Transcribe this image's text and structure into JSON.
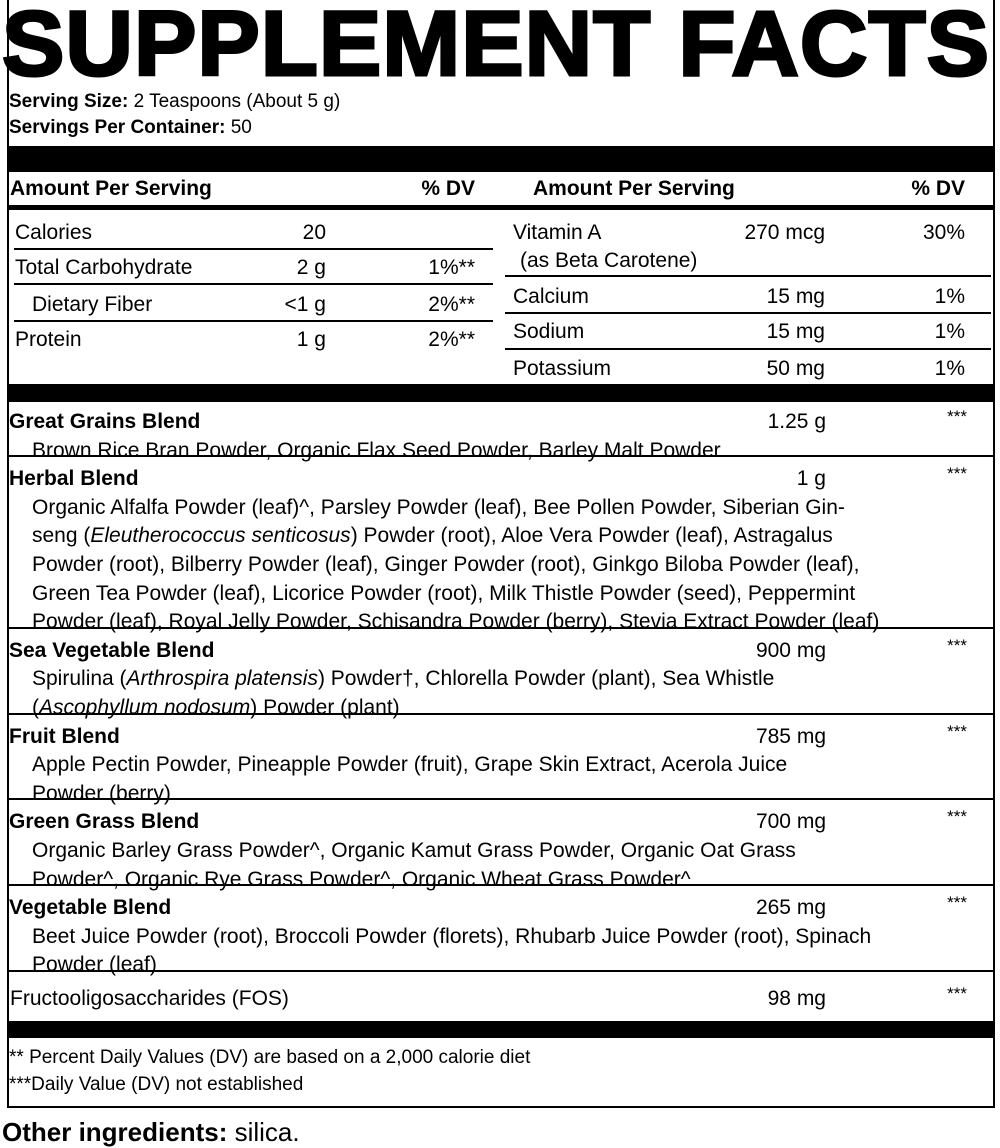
{
  "title": "SUPPLEMENT FACTS",
  "serving": {
    "size_label": "Serving Size:",
    "size_value": "2 Teaspoons (About 5 g)",
    "per_container_label": "Servings Per Container:",
    "per_container_value": "50"
  },
  "header": {
    "left_amount": "Amount Per Serving",
    "left_dv": "% DV",
    "right_amount": "Amount Per Serving",
    "right_dv": "% DV"
  },
  "left_nutrients": [
    {
      "name": "Calories",
      "amount": "20",
      "dv": ""
    },
    {
      "name": "Total Carbohydrate",
      "amount": "2 g",
      "dv": "1%**"
    },
    {
      "name": "Dietary Fiber",
      "amount": "<1 g",
      "dv": "2%**"
    },
    {
      "name": "Protein",
      "amount": "1 g",
      "dv": "2%**"
    }
  ],
  "right_nutrients": [
    {
      "name": "Vitamin A",
      "sub": "(as Beta Carotene)",
      "amount": "270 mcg",
      "dv": "30%"
    },
    {
      "name": "Calcium",
      "amount": "15 mg",
      "dv": "1%"
    },
    {
      "name": "Sodium",
      "amount": "15 mg",
      "dv": "1%"
    },
    {
      "name": "Potassium",
      "amount": "50 mg",
      "dv": "1%"
    }
  ],
  "blends": [
    {
      "name": "Great Grains Blend",
      "amount": "1.25 g",
      "dv": "***",
      "lines": [
        [
          {
            "t": "Brown Rice Bran Powder, Organic Flax Seed Powder, Barley Malt Powder"
          }
        ]
      ]
    },
    {
      "name": "Herbal Blend",
      "amount": "1 g",
      "dv": "***",
      "lines": [
        [
          {
            "t": "Organic Alfalfa Powder (leaf)^, Parsley Powder (leaf), Bee Pollen Powder, Siberian Gin-"
          }
        ],
        [
          {
            "t": "seng ("
          },
          {
            "t": "Eleutherococcus senticosus",
            "i": true
          },
          {
            "t": ") Powder (root), Aloe Vera Powder (leaf), Astragalus"
          }
        ],
        [
          {
            "t": "Powder (root), Bilberry Powder (leaf), Ginger Powder (root), Ginkgo Biloba Powder (leaf),"
          }
        ],
        [
          {
            "t": "Green Tea Powder (leaf), Licorice Powder (root), Milk Thistle Powder (seed), Peppermint"
          }
        ],
        [
          {
            "t": "Powder (leaf), Royal Jelly Powder, Schisandra Powder (berry), Stevia Extract Powder (leaf)"
          }
        ]
      ]
    },
    {
      "name": "Sea Vegetable Blend",
      "amount": "900 mg",
      "dv": "***",
      "lines": [
        [
          {
            "t": "Spirulina ("
          },
          {
            "t": "Arthrospira platensis",
            "i": true
          },
          {
            "t": ") Powder†, Chlorella Powder (plant), Sea Whistle"
          }
        ],
        [
          {
            "t": "("
          },
          {
            "t": "Ascophyllum nodosum",
            "i": true
          },
          {
            "t": ") Powder (plant)"
          }
        ]
      ]
    },
    {
      "name": "Fruit Blend",
      "amount": "785 mg",
      "dv": "***",
      "lines": [
        [
          {
            "t": "Apple Pectin Powder, Pineapple Powder (fruit), Grape Skin Extract, Acerola Juice"
          }
        ],
        [
          {
            "t": "Powder (berry)"
          }
        ]
      ]
    },
    {
      "name": "Green Grass Blend",
      "amount": "700 mg",
      "dv": "***",
      "lines": [
        [
          {
            "t": "Organic Barley Grass Powder^, Organic Kamut Grass Powder, Organic Oat Grass"
          }
        ],
        [
          {
            "t": "Powder^, Organic Rye Grass Powder^, Organic Wheat Grass Powder^"
          }
        ]
      ]
    },
    {
      "name": "Vegetable Blend",
      "amount": "265 mg",
      "dv": "***",
      "lines": [
        [
          {
            "t": "Beet Juice Powder (root), Broccoli Powder (florets), Rhubarb Juice Powder (root), Spinach"
          }
        ],
        [
          {
            "t": "Powder (leaf)"
          }
        ]
      ]
    }
  ],
  "fos": {
    "name": "Fructooligosaccharides (FOS)",
    "amount": "98 mg",
    "dv": "***"
  },
  "footnotes": [
    "** Percent Daily Values (DV) are based on a 2,000 calorie diet",
    "***Daily Value (DV) not established"
  ],
  "other_ingredients": {
    "label": "Other ingredients:",
    "value": "silica."
  }
}
